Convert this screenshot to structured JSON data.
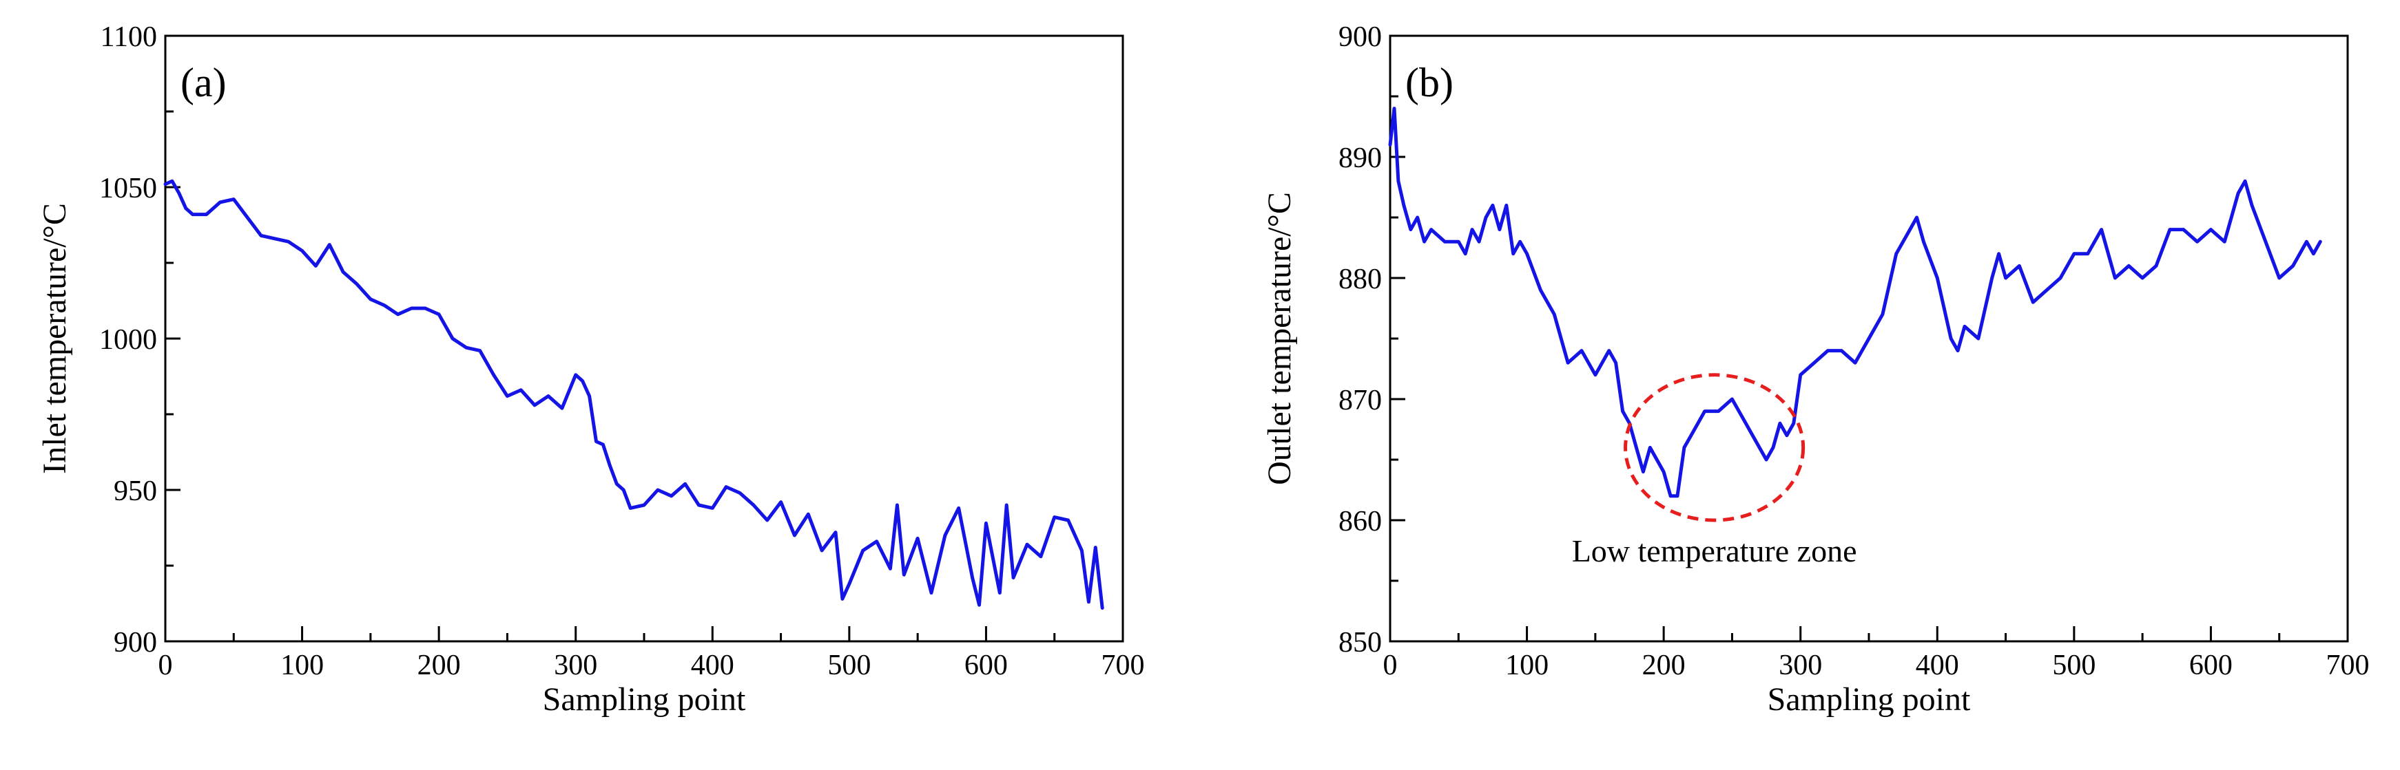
{
  "chart_data": [
    {
      "type": "line",
      "panel_label": "(a)",
      "xlabel": "Sampling point",
      "ylabel": "Inlet temperature/°C",
      "xlim": [
        0,
        700
      ],
      "ylim": [
        900,
        1100
      ],
      "xticks": [
        0,
        100,
        200,
        300,
        400,
        500,
        600,
        700
      ],
      "yticks": [
        900,
        950,
        1000,
        1050,
        1100
      ],
      "grid": false,
      "color": "#1414e6",
      "series": [
        {
          "x": [
            0,
            5,
            10,
            15,
            20,
            30,
            40,
            50,
            60,
            70,
            80,
            90,
            100,
            110,
            120,
            130,
            140,
            150,
            160,
            170,
            180,
            190,
            200,
            210,
            220,
            230,
            240,
            250,
            260,
            270,
            280,
            290,
            300,
            305,
            310,
            315,
            320,
            325,
            330,
            335,
            340,
            350,
            360,
            370,
            380,
            390,
            400,
            410,
            420,
            430,
            440,
            450,
            460,
            470,
            480,
            490,
            495,
            500,
            510,
            520,
            530,
            535,
            540,
            550,
            560,
            570,
            580,
            590,
            595,
            600,
            610,
            615,
            620,
            630,
            640,
            650,
            660,
            670,
            675,
            680,
            685
          ],
          "y": [
            1051,
            1052,
            1048,
            1043,
            1041,
            1041,
            1045,
            1046,
            1040,
            1034,
            1033,
            1032,
            1029,
            1024,
            1031,
            1022,
            1018,
            1013,
            1011,
            1008,
            1010,
            1010,
            1008,
            1000,
            997,
            996,
            988,
            981,
            983,
            978,
            981,
            977,
            988,
            986,
            981,
            966,
            965,
            958,
            952,
            950,
            944,
            945,
            950,
            948,
            952,
            945,
            944,
            951,
            949,
            945,
            940,
            946,
            935,
            942,
            930,
            936,
            914,
            919,
            930,
            933,
            924,
            945,
            922,
            934,
            916,
            935,
            944,
            921,
            912,
            939,
            916,
            945,
            921,
            932,
            928,
            941,
            940,
            930,
            913,
            931,
            911
          ]
        }
      ]
    },
    {
      "type": "line",
      "panel_label": "(b)",
      "xlabel": "Sampling point",
      "ylabel": "Outlet temperature/°C",
      "xlim": [
        0,
        700
      ],
      "ylim": [
        850,
        900
      ],
      "xticks": [
        0,
        100,
        200,
        300,
        400,
        500,
        600,
        700
      ],
      "yticks": [
        850,
        860,
        870,
        880,
        890,
        900
      ],
      "grid": false,
      "color": "#1414e6",
      "annotation": {
        "text": "Low temperature zone",
        "center": [
          237,
          866
        ],
        "radius_x": 65,
        "radius_y": 6,
        "color": "#e61e1e"
      },
      "series": [
        {
          "x": [
            0,
            3,
            6,
            10,
            15,
            20,
            25,
            30,
            40,
            50,
            55,
            60,
            65,
            70,
            75,
            80,
            85,
            90,
            95,
            100,
            110,
            120,
            130,
            140,
            150,
            160,
            165,
            170,
            175,
            180,
            185,
            190,
            195,
            200,
            205,
            210,
            215,
            220,
            230,
            240,
            250,
            260,
            270,
            275,
            280,
            285,
            290,
            295,
            300,
            310,
            320,
            330,
            340,
            350,
            360,
            370,
            380,
            385,
            390,
            400,
            410,
            415,
            420,
            430,
            440,
            445,
            450,
            460,
            470,
            480,
            490,
            500,
            510,
            520,
            530,
            540,
            550,
            560,
            570,
            580,
            590,
            600,
            610,
            620,
            625,
            630,
            640,
            650,
            660,
            670,
            675,
            680
          ],
          "y": [
            891,
            894,
            888,
            886,
            884,
            885,
            883,
            884,
            883,
            883,
            882,
            884,
            883,
            885,
            886,
            884,
            886,
            882,
            883,
            882,
            879,
            877,
            873,
            874,
            872,
            874,
            873,
            869,
            868,
            866,
            864,
            866,
            865,
            864,
            862,
            862,
            866,
            867,
            869,
            869,
            870,
            868,
            866,
            865,
            866,
            868,
            867,
            868,
            872,
            873,
            874,
            874,
            873,
            875,
            877,
            882,
            884,
            885,
            883,
            880,
            875,
            874,
            876,
            875,
            880,
            882,
            880,
            881,
            878,
            879,
            880,
            882,
            882,
            884,
            880,
            881,
            880,
            881,
            884,
            884,
            883,
            884,
            883,
            887,
            888,
            886,
            883,
            880,
            881,
            883,
            882,
            883
          ]
        }
      ]
    }
  ]
}
